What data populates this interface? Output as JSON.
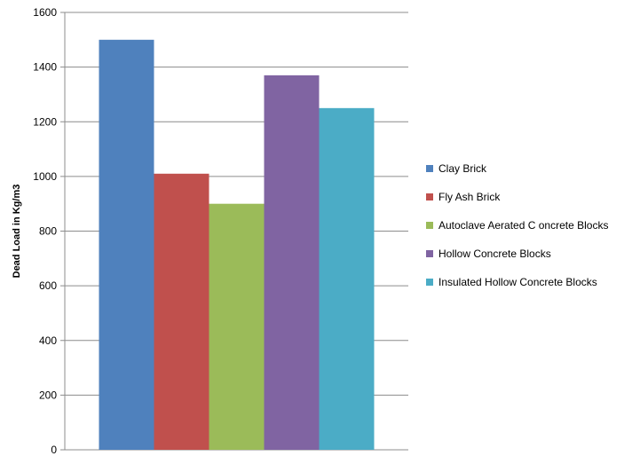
{
  "chart_data": {
    "type": "bar",
    "title": "",
    "xlabel": "",
    "ylabel": "Dead Load in Kg/m3",
    "ylim": [
      0,
      1600
    ],
    "yticks": [
      0,
      200,
      400,
      600,
      800,
      1000,
      1200,
      1400,
      1600
    ],
    "grid": true,
    "legend_position": "right",
    "series": [
      {
        "name": "Clay Brick",
        "value": 1500,
        "color": "#4F81BD"
      },
      {
        "name": "Fly Ash Brick",
        "value": 1010,
        "color": "#C0504D"
      },
      {
        "name": "Autoclave Aerated C oncrete Blocks",
        "value": 900,
        "color": "#9BBB59"
      },
      {
        "name": "Hollow Concrete Blocks",
        "value": 1370,
        "color": "#8064A2"
      },
      {
        "name": "Insulated Hollow Concrete Blocks",
        "value": 1250,
        "color": "#4BACC6"
      }
    ]
  }
}
